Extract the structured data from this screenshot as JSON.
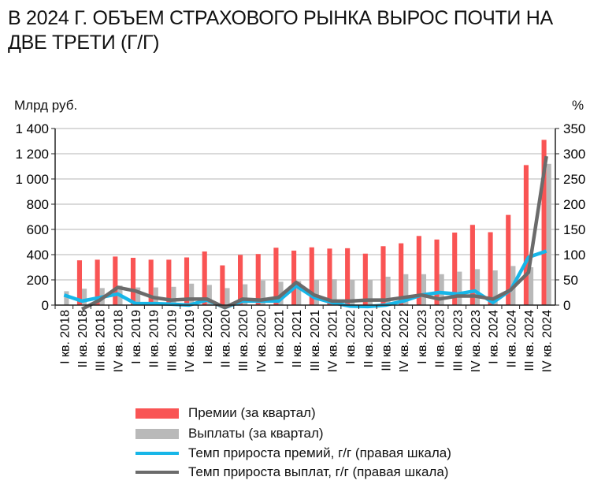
{
  "chart_data": {
    "type": "bar",
    "title": "В 2024 Г. ОБЪЕМ СТРАХОВОГО РЫНКА ВЫРОС ПОЧТИ НА ДВЕ ТРЕТИ (Г/Г)",
    "ylabel": "Млрд руб.",
    "y2label": "%",
    "ylim": [
      0,
      1400
    ],
    "y2lim": [
      0,
      350
    ],
    "yticks": [
      "0",
      "200",
      "400",
      "600",
      "800",
      "1 000",
      "1 200",
      "1 400"
    ],
    "y2ticks": [
      "0",
      "50",
      "100",
      "150",
      "200",
      "250",
      "300",
      "350"
    ],
    "categories": [
      "I кв. 2018",
      "II кв. 2018",
      "III кв. 2018",
      "IV кв. 2018",
      "I кв. 2019",
      "II кв. 2019",
      "III кв. 2019",
      "IV кв. 2019",
      "I кв. 2020",
      "II кв. 2020",
      "III кв. 2020",
      "IV кв. 2020",
      "I кв. 2021",
      "II кв. 2021",
      "III кв. 2021",
      "IV кв. 2021",
      "I кв. 2022",
      "II кв. 2022",
      "III кв. 2022",
      "IV кв. 2022",
      "I кв. 2023",
      "II кв. 2023",
      "III кв. 2023",
      "IV кв. 2023",
      "I кв. 2024",
      "II кв. 2024",
      "III кв. 2024",
      "IV кв. 2024"
    ],
    "series": [
      {
        "name": "Премии (за квартал)",
        "type": "bar",
        "axis": "left",
        "color": "#f95454",
        "values": [
          null,
          355,
          360,
          385,
          375,
          360,
          360,
          378,
          425,
          315,
          398,
          405,
          455,
          432,
          458,
          448,
          451,
          408,
          467,
          490,
          548,
          520,
          575,
          636,
          578,
          715,
          1110,
          1310
        ]
      },
      {
        "name": "Выплаты (за квартал)",
        "type": "bar",
        "axis": "left",
        "color": "#b9b9b9",
        "values": [
          110,
          130,
          135,
          155,
          140,
          140,
          145,
          170,
          160,
          135,
          165,
          195,
          185,
          190,
          200,
          205,
          200,
          200,
          225,
          245,
          245,
          245,
          265,
          285,
          275,
          310,
          300,
          1120
        ]
      },
      {
        "name": "Темп прироста премий, г/г (правая шкала)",
        "type": "line",
        "axis": "right",
        "color": "#17b6e8",
        "values": [
          20,
          8,
          15,
          22,
          3,
          3,
          2,
          0,
          10,
          -5,
          8,
          8,
          8,
          38,
          15,
          5,
          -2,
          -3,
          0,
          8,
          20,
          25,
          22,
          28,
          5,
          30,
          95,
          107
        ]
      },
      {
        "name": "Темп прироста выплат, г/г (правая шкала)",
        "type": "line",
        "axis": "right",
        "color": "#6b6b6b",
        "values": [
          null,
          -8,
          10,
          35,
          28,
          15,
          10,
          12,
          12,
          -5,
          12,
          10,
          15,
          45,
          20,
          8,
          8,
          10,
          10,
          15,
          20,
          12,
          18,
          18,
          12,
          30,
          65,
          295
        ]
      }
    ],
    "grid": true,
    "legend": "bottom"
  }
}
